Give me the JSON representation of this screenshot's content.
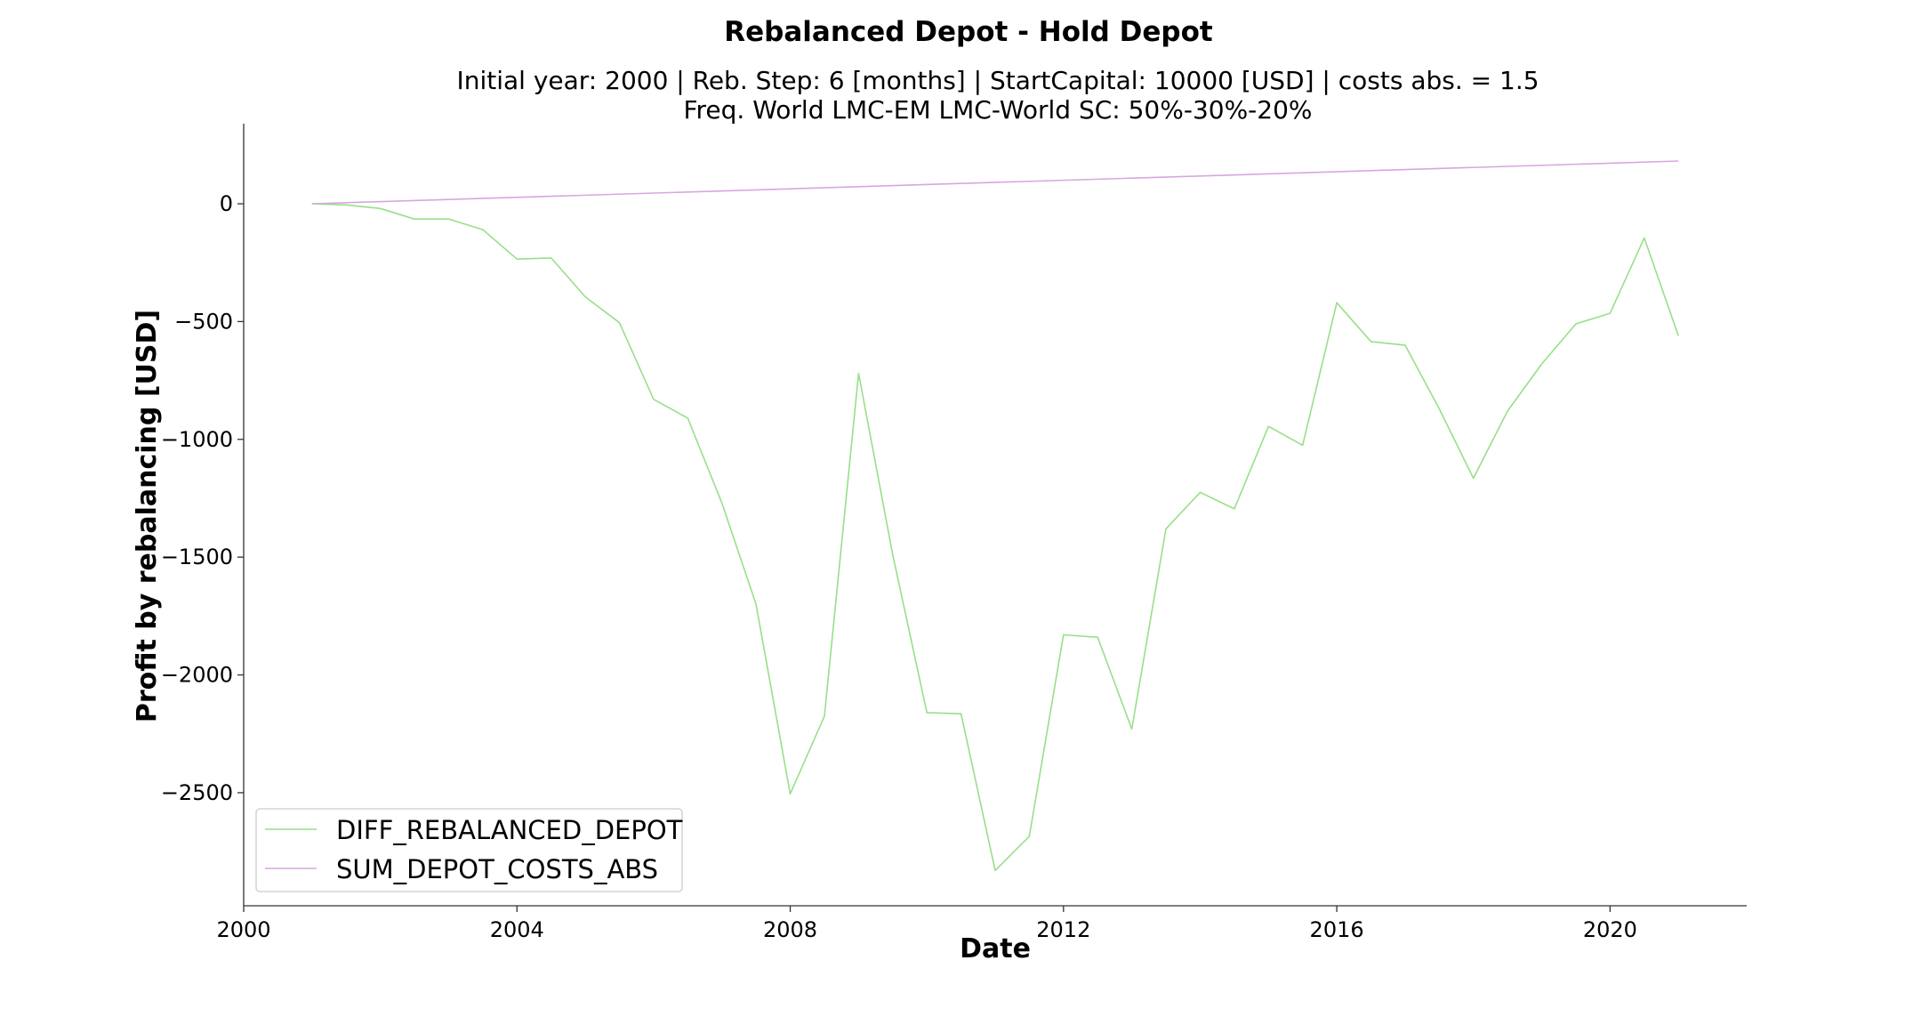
{
  "chart_data": {
    "type": "line",
    "title": "Rebalanced Depot - Hold Depot",
    "subtitle_line1": "Initial year: 2000 | Reb. Step: 6 [months] | StartCapital: 10000 [USD] | costs abs. = 1.5",
    "subtitle_line2": "Freq. World LMC-EM LMC-World SC: 50%-30%-20%",
    "xlabel": "Date",
    "ylabel": "Profit by rebalancing [USD]",
    "xlim": [
      2000,
      2022
    ],
    "ylim": [
      -2980,
      340
    ],
    "x_ticks": [
      2000,
      2004,
      2008,
      2012,
      2016,
      2020
    ],
    "x_tick_labels": [
      "2000",
      "2004",
      "2008",
      "2012",
      "2016",
      "2020"
    ],
    "y_ticks": [
      0,
      -500,
      -1000,
      -1500,
      -2000,
      -2500
    ],
    "y_tick_labels": [
      "0",
      "−500",
      "−1000",
      "−1500",
      "−2000",
      "−2500"
    ],
    "grid": false,
    "legend_position": "lower-left",
    "series": [
      {
        "name": "DIFF_REBALANCED_DEPOT",
        "color": "#98df8a",
        "x": [
          2001.0,
          2001.5,
          2002.0,
          2002.5,
          2003.0,
          2003.5,
          2004.0,
          2004.5,
          2005.0,
          2005.5,
          2006.0,
          2006.5,
          2007.0,
          2007.5,
          2008.0,
          2008.5,
          2009.0,
          2009.5,
          2010.0,
          2010.5,
          2011.0,
          2011.5,
          2012.0,
          2012.5,
          2013.0,
          2013.5,
          2014.0,
          2014.5,
          2015.0,
          2015.5,
          2016.0,
          2016.5,
          2017.0,
          2017.5,
          2018.0,
          2018.5,
          2019.0,
          2019.5,
          2020.0,
          2020.5,
          2021.0
        ],
        "values": [
          0,
          -5,
          -20,
          -65,
          -65,
          -110,
          -235,
          -230,
          -395,
          -505,
          -830,
          -910,
          -1270,
          -1700,
          -2505,
          -2175,
          -720,
          -1490,
          -2160,
          -2165,
          -2830,
          -2685,
          -1830,
          -1840,
          -2230,
          -1380,
          -1225,
          -1295,
          -945,
          -1025,
          -420,
          -585,
          -600,
          -870,
          -1165,
          -880,
          -680,
          -510,
          -465,
          -145,
          -560
        ]
      },
      {
        "name": "SUM_DEPOT_COSTS_ABS",
        "color": "#d8a6e0",
        "x": [
          2001.0,
          2021.0
        ],
        "values": [
          0,
          181.5
        ]
      }
    ]
  }
}
